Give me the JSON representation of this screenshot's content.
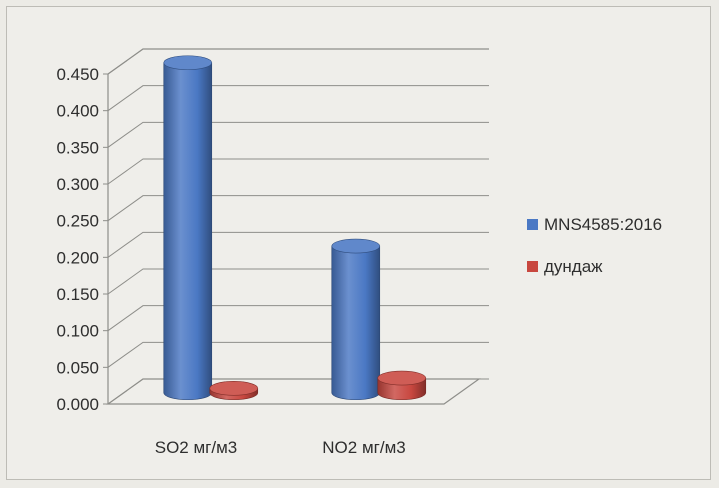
{
  "chart_data": {
    "type": "bar",
    "style": "3d-cylinder",
    "categories": [
      "SO2 мг/м3",
      "NO2 мг/м3"
    ],
    "series": [
      {
        "name": "MNS4585:2016",
        "values": [
          0.45,
          0.2
        ],
        "color": "#4a78c4"
      },
      {
        "name": "дундаж",
        "values": [
          0.006,
          0.02
        ],
        "color": "#c8473f"
      }
    ],
    "y_ticks": [
      "0.000",
      "0.050",
      "0.100",
      "0.150",
      "0.200",
      "0.250",
      "0.300",
      "0.350",
      "0.400",
      "0.450"
    ],
    "ylim": [
      0,
      0.45
    ],
    "grid": true,
    "legend_position": "right"
  }
}
